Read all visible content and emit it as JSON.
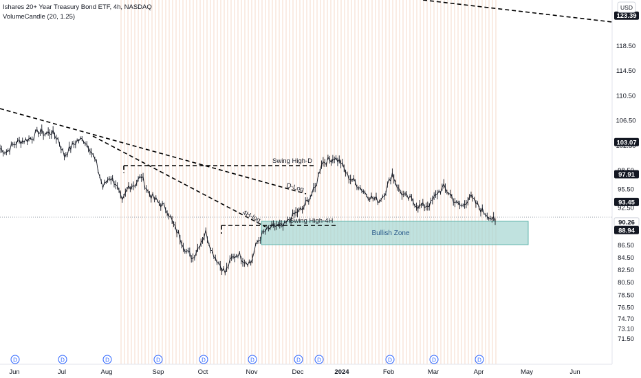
{
  "legend": {
    "title": "Ishares 20+ Year Treasury Bond ETF, 4h, NASDAQ",
    "indicator": "VolumeCandle (20, 1.25)"
  },
  "currency_label": "USD",
  "chart_data": {
    "type": "line",
    "ylim": [
      71.5,
      125.9
    ],
    "y_ticks": [
      71.5,
      73.1,
      74.7,
      76.5,
      78.5,
      80.5,
      82.5,
      84.5,
      86.5,
      92.5,
      95.5,
      98.5,
      102.5,
      106.5,
      110.5,
      114.5,
      118.5
    ],
    "x_ticks": [
      "Jun",
      "Jul",
      "Aug",
      "Sep",
      "Oct",
      "Nov",
      "Dec",
      "2024",
      "Feb",
      "Mar",
      "Apr",
      "May",
      "Jun"
    ],
    "price_badges": [
      {
        "value": "123.39",
        "style": "dark"
      },
      {
        "value": "103.07",
        "style": "dark"
      },
      {
        "value": "97.91",
        "style": "dark"
      },
      {
        "value": "93.45",
        "style": "dark"
      },
      {
        "value": "90.26",
        "style": "light"
      },
      {
        "value": "88.94",
        "style": "dark"
      }
    ],
    "series": [
      {
        "values": [
          102.0,
          101.5,
          102.6,
          103.2,
          103.4,
          103.8,
          104.8,
          104.4,
          104.7,
          103.6,
          100.9,
          102.2,
          103.3,
          103.5,
          102.1,
          99.5,
          95.8,
          97.5,
          96.5,
          93.3,
          96.0,
          96.3,
          97.6,
          95.1,
          93.9,
          93.1,
          92.2,
          89.7,
          87.8,
          85.5,
          84.5,
          86.6,
          88.6,
          85.5,
          83.7,
          82.1,
          84.3,
          85.2,
          84.0,
          83.7,
          87.0,
          88.5,
          89.2,
          89.7,
          89.4,
          90.6,
          91.7,
          92.2,
          94.0,
          95.6,
          99.8,
          100.1,
          100.6,
          99.8,
          97.7,
          96.8,
          95.8,
          94.7,
          94.0,
          93.7,
          95.3,
          98.1,
          95.4,
          94.3,
          93.8,
          92.8,
          92.8,
          93.2,
          94.9,
          95.8,
          94.7,
          93.1,
          92.8,
          94.4,
          93.2,
          92.0,
          91.3,
          90.3
        ]
      }
    ],
    "annotations": [
      {
        "text": "Swing High-D",
        "value": 97.91
      },
      {
        "text": "Swing High-4H",
        "value": 88.94
      },
      {
        "text": "D-Log"
      },
      {
        "text": "4H-log"
      },
      {
        "text": "Bullish Zone"
      }
    ],
    "event_marker": "D",
    "grid": false
  },
  "colors": {
    "price": "#131722",
    "zone_fill": "#a5d6d2",
    "zone_stroke": "#5fb4ac",
    "zone_text": "#2a5a8a",
    "vgrid": "#f6d9c8"
  }
}
